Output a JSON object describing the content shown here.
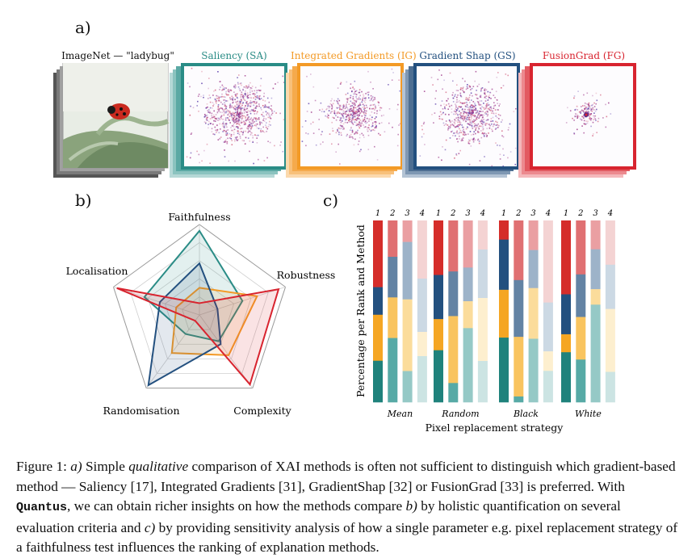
{
  "panel_labels": {
    "a": "a)",
    "b": "b)",
    "c": "c)"
  },
  "panel_a": {
    "images": [
      {
        "title": "ImageNet — \"ladybug\"",
        "color": "#444444"
      },
      {
        "title": "Saliency (SA)",
        "color": "#2a8c86"
      },
      {
        "title": "Integrated Gradients (IG)",
        "color": "#f39a26"
      },
      {
        "title": "Gradient Shap (GS)",
        "color": "#23507f"
      },
      {
        "title": "FusionGrad (FG)",
        "color": "#d8242f"
      }
    ]
  },
  "panel_b": {
    "axes": [
      "Faithfulness",
      "Robustness",
      "Complexity",
      "Randomisation",
      "Localisation"
    ],
    "series": [
      {
        "color": "#2a8c86",
        "fill": "#2a8c86",
        "values": [
          0.93,
          0.5,
          0.36,
          0.26,
          0.64
        ]
      },
      {
        "color": "#f39a26",
        "fill": "#f39a26",
        "values": [
          0.3,
          0.67,
          0.55,
          0.52,
          0.27
        ]
      },
      {
        "color": "#23507f",
        "fill": "#23507f",
        "values": [
          0.57,
          0.21,
          0.4,
          0.96,
          0.46
        ]
      },
      {
        "color": "#d8242f",
        "fill": "#d8242f",
        "values": [
          0.13,
          0.92,
          0.95,
          0.08,
          0.96
        ]
      }
    ]
  },
  "chart_data": {
    "type": "bar",
    "ylabel": "Percentage per Rank and Method",
    "xlabel": "Pixel replacement strategy",
    "groups": [
      "Mean",
      "Random",
      "Black",
      "White"
    ],
    "ranks": [
      "1",
      "2",
      "3",
      "4"
    ],
    "method_order": [
      "FG",
      "GS",
      "IG",
      "SA"
    ],
    "colors": {
      "FG": [
        "#d52d2a",
        "#e07072",
        "#ea9fa2",
        "#f4d3d3"
      ],
      "GS": [
        "#23507f",
        "#6383a4",
        "#9db3c9",
        "#ccd9e4"
      ],
      "IG": [
        "#f5a623",
        "#f9c45f",
        "#fbdc9b",
        "#fdefcf"
      ],
      "SA": [
        "#1f827c",
        "#57aaa6",
        "#95c9c6",
        "#cce4e3"
      ]
    },
    "values": [
      [
        [
          29,
          12,
          20,
          18
        ],
        [
          17,
          19,
          19,
          30
        ],
        [
          9,
          24,
          30,
          13
        ],
        [
          24,
          22,
          10,
          19
        ]
      ],
      [
        [
          21,
          17,
          12,
          20
        ],
        [
          16,
          14,
          21,
          6
        ],
        [
          21,
          15,
          12,
          33
        ],
        [
          12,
          20,
          26,
          17
        ]
      ],
      [
        [
          8,
          21,
          20,
          27
        ],
        [
          21,
          20,
          21,
          2
        ],
        [
          14,
          18,
          24,
          30
        ],
        [
          42,
          25,
          10,
          16
        ]
      ],
      [
        [
          37,
          20,
          9,
          25
        ],
        [
          19,
          15,
          15,
          15
        ],
        [
          13,
          18,
          7,
          44
        ],
        [
          19,
          19,
          27,
          13
        ]
      ]
    ]
  },
  "caption": {
    "fig": "Figure 1:",
    "a_label": "a)",
    "seg1": " Simple ",
    "em1": "qualitative",
    "seg2": " comparison of XAI methods is often not sufficient to distinguish which gradient-based method — Saliency [17], Integrated Gradients [31], GradientShap [32] or FusionGrad [33] is preferred.  With ",
    "quantus": "Quantus",
    "seg3": ", we can obtain richer insights on how the methods compare ",
    "b_label": "b)",
    "seg4": " by holistic quantification on several evaluation criteria and ",
    "c_label": "c)",
    "seg5": " by providing sensitivity analysis of how a single parameter e.g. pixel replacement strategy of a faithfulness test influences the ranking of explanation methods."
  }
}
